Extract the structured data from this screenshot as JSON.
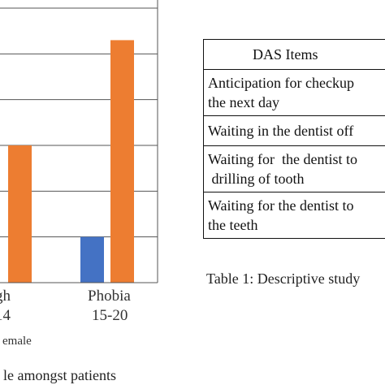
{
  "chart_data": {
    "type": "bar",
    "categories": [
      "gh\n14",
      "Phobia\n15-20"
    ],
    "category_lines": [
      [
        "gh",
        "14"
      ],
      [
        "Phobia",
        "15-20"
      ]
    ],
    "series": [
      {
        "name": "",
        "color": "#4472c4",
        "values": [
          null,
          1
        ]
      },
      {
        "name": "emale",
        "color": "#ed7d31",
        "values": [
          3,
          5.3
        ]
      }
    ],
    "ylim": [
      0,
      6
    ],
    "grid": true,
    "legend_text": "emale",
    "caption": "le amongst patients"
  },
  "table": {
    "header": "DAS Items",
    "rows": [
      "Anticipation for checkup\nthe next day",
      "Waiting in the dentist off",
      "Waiting for  the dentist to\n drilling of tooth",
      "Waiting for the dentist to\nthe teeth"
    ],
    "caption": "Table 1: Descriptive study"
  }
}
